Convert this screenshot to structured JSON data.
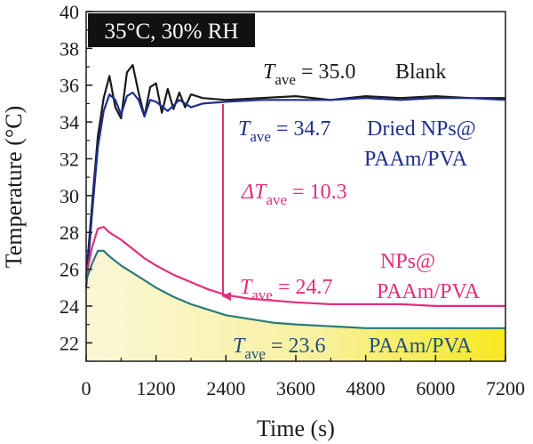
{
  "chart_data": {
    "type": "line",
    "xlabel": "Time (s)",
    "ylabel": "Temperature (°C)",
    "xlim": [
      0,
      7200
    ],
    "ylim": [
      21,
      40
    ],
    "x_ticks": [
      "0",
      "1200",
      "2400",
      "3600",
      "4800",
      "6000",
      "7200"
    ],
    "y_ticks": [
      "22",
      "24",
      "26",
      "28",
      "30",
      "32",
      "34",
      "36",
      "38",
      "40"
    ],
    "condition_label": "35°C, 30% RH",
    "series": [
      {
        "name": "Blank",
        "color": "#1a1a1a",
        "x": [
          0,
          100,
          200,
          300,
          400,
          500,
          600,
          700,
          800,
          900,
          1000,
          1100,
          1200,
          1300,
          1400,
          1500,
          1600,
          1700,
          1800,
          2000,
          2400,
          3000,
          3600,
          4200,
          4800,
          5400,
          6000,
          6600,
          7200
        ],
        "y": [
          25.5,
          29.5,
          33.2,
          35.3,
          36.5,
          34.8,
          34.2,
          36.7,
          37.1,
          35.6,
          34.3,
          35.9,
          36.1,
          34.5,
          35.8,
          34.7,
          35.6,
          34.8,
          35.5,
          35.3,
          35.2,
          35.3,
          35.4,
          35.2,
          35.4,
          35.3,
          35.4,
          35.3,
          35.3
        ]
      },
      {
        "name": "Dried NPs@ PAAm/PVA",
        "color": "#1f2f8f",
        "x": [
          0,
          100,
          200,
          300,
          400,
          500,
          600,
          700,
          800,
          900,
          1000,
          1100,
          1200,
          1400,
          1600,
          1800,
          2000,
          2400,
          3000,
          3600,
          4200,
          4800,
          5400,
          6000,
          6600,
          7200
        ],
        "y": [
          25.0,
          29.0,
          32.6,
          34.6,
          35.5,
          35.2,
          34.4,
          35.4,
          35.6,
          35.2,
          34.3,
          35.2,
          35.1,
          34.6,
          35.2,
          34.8,
          35.0,
          35.1,
          35.2,
          35.2,
          35.2,
          35.3,
          35.2,
          35.3,
          35.3,
          35.2
        ]
      },
      {
        "name": "NPs@ PAAm/PVA",
        "color": "#e0307a",
        "x": [
          0,
          100,
          200,
          300,
          400,
          600,
          800,
          1000,
          1200,
          1500,
          1800,
          2100,
          2400,
          2800,
          3200,
          3600,
          4200,
          4800,
          5400,
          6000,
          6600,
          7200
        ],
        "y": [
          25.6,
          27.2,
          28.2,
          28.3,
          28.0,
          27.6,
          27.1,
          26.6,
          26.2,
          25.7,
          25.3,
          24.9,
          24.6,
          24.4,
          24.3,
          24.2,
          24.1,
          24.1,
          24.1,
          24.0,
          24.0,
          24.0
        ]
      },
      {
        "name": "PAAm/PVA",
        "color": "#2a7a78",
        "x": [
          0,
          100,
          200,
          300,
          400,
          600,
          800,
          1000,
          1200,
          1500,
          1800,
          2100,
          2400,
          2800,
          3200,
          3600,
          4200,
          4800,
          5400,
          6000,
          6600,
          7200
        ],
        "y": [
          25.4,
          26.3,
          27.0,
          27.0,
          26.7,
          26.2,
          25.8,
          25.4,
          25.0,
          24.5,
          24.1,
          23.8,
          23.5,
          23.3,
          23.1,
          23.0,
          22.9,
          22.8,
          22.8,
          22.8,
          22.8,
          22.8
        ]
      }
    ],
    "annotations": [
      {
        "id": "blank",
        "prefix": "T",
        "sub": "ave",
        "text": " = 35.0",
        "label": "Blank",
        "color": "#1a1a1a"
      },
      {
        "id": "dried",
        "prefix": "T",
        "sub": "ave",
        "text": " = 34.7",
        "label": "Dried NPs@",
        "label2": "PAAm/PVA",
        "color": "#1f2f8f"
      },
      {
        "id": "delta",
        "prefix": "ΔT",
        "sub": "ave",
        "text": " = 10.3",
        "color": "#e0307a"
      },
      {
        "id": "nps",
        "prefix": "T",
        "sub": "ave",
        "text": " = 24.7",
        "label": "NPs@",
        "label2": "PAAm/PVA",
        "color": "#e0307a"
      },
      {
        "id": "paam",
        "prefix": "T",
        "sub": "ave",
        "text": " = 23.6",
        "label": "PAAm/PVA",
        "color": "#1f4f7a"
      }
    ],
    "grid": false
  }
}
